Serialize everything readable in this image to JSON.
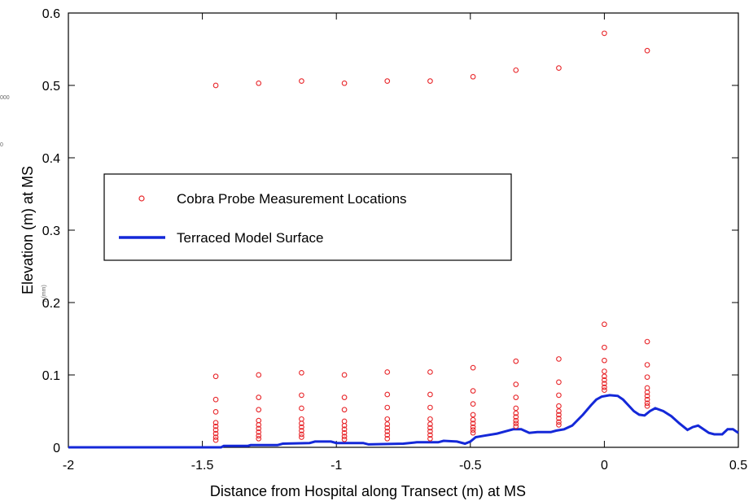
{
  "chart_data": {
    "type": "scatter",
    "xlabel": "Distance from Hospital along Transect (m) at MS",
    "ylabel": "Elevation (m) at MS",
    "xlim": [
      -2,
      0.5
    ],
    "ylim": [
      0,
      0.6
    ],
    "x_ticks": [
      -2,
      -1.5,
      -1,
      -0.5,
      0,
      0.5
    ],
    "x_tick_labels": [
      "-2",
      "-1.5",
      "-1",
      "-0.5",
      "0",
      "0.5"
    ],
    "y_ticks": [
      0,
      0.1,
      0.2,
      0.3,
      0.4,
      0.5,
      0.6
    ],
    "y_tick_labels": [
      "0",
      "0.1",
      "0.2",
      "0.3",
      "0.4",
      "0.5",
      "0.6"
    ],
    "legend": {
      "placement": "center-left",
      "entries": [
        {
          "label": "Cobra Probe Measurement Locations",
          "marker": "circle",
          "color": "#e8262a"
        },
        {
          "label": "Terraced Model Surface",
          "marker": "line",
          "color": "#1428d8"
        }
      ]
    },
    "series": [
      {
        "name": "Cobra Probe Measurement Locations",
        "kind": "scatter",
        "color": "#e8262a",
        "columns": [
          {
            "x": -1.45,
            "y": [
              0.098,
              0.066,
              0.049,
              0.034,
              0.029,
              0.024,
              0.019,
              0.014,
              0.01
            ]
          },
          {
            "x": -1.29,
            "y": [
              0.1,
              0.069,
              0.052,
              0.037,
              0.031,
              0.026,
              0.021,
              0.016,
              0.012
            ]
          },
          {
            "x": -1.13,
            "y": [
              0.103,
              0.072,
              0.054,
              0.039,
              0.033,
              0.028,
              0.023,
              0.018,
              0.014
            ]
          },
          {
            "x": -0.97,
            "y": [
              0.1,
              0.069,
              0.052,
              0.036,
              0.03,
              0.025,
              0.02,
              0.015,
              0.011
            ]
          },
          {
            "x": -0.81,
            "y": [
              0.104,
              0.073,
              0.055,
              0.039,
              0.032,
              0.027,
              0.022,
              0.017,
              0.012
            ]
          },
          {
            "x": -0.65,
            "y": [
              0.104,
              0.073,
              0.055,
              0.039,
              0.032,
              0.027,
              0.022,
              0.017,
              0.012
            ]
          },
          {
            "x": -0.49,
            "y": [
              0.11,
              0.078,
              0.06,
              0.045,
              0.038,
              0.033,
              0.028,
              0.024,
              0.02
            ]
          },
          {
            "x": -0.33,
            "y": [
              0.119,
              0.087,
              0.069,
              0.054,
              0.047,
              0.042,
              0.037,
              0.033,
              0.029
            ]
          },
          {
            "x": -0.17,
            "y": [
              0.122,
              0.09,
              0.072,
              0.057,
              0.05,
              0.045,
              0.04,
              0.035,
              0.031
            ]
          },
          {
            "x": 0.0,
            "y": [
              0.17,
              0.138,
              0.12,
              0.105,
              0.098,
              0.093,
              0.088,
              0.083,
              0.079
            ]
          },
          {
            "x": 0.16,
            "y": [
              0.146,
              0.114,
              0.097,
              0.082,
              0.076,
              0.071,
              0.066,
              0.061,
              0.057
            ]
          }
        ],
        "upper_points": [
          {
            "x": -1.45,
            "y": 0.5
          },
          {
            "x": -1.29,
            "y": 0.503
          },
          {
            "x": -1.13,
            "y": 0.506
          },
          {
            "x": -0.97,
            "y": 0.503
          },
          {
            "x": -0.81,
            "y": 0.506
          },
          {
            "x": -0.65,
            "y": 0.506
          },
          {
            "x": -0.49,
            "y": 0.512
          },
          {
            "x": -0.33,
            "y": 0.521
          },
          {
            "x": -0.17,
            "y": 0.524
          },
          {
            "x": 0.0,
            "y": 0.572
          },
          {
            "x": 0.16,
            "y": 0.548
          }
        ]
      },
      {
        "name": "Terraced Model Surface",
        "kind": "line",
        "color": "#1428d8",
        "points": [
          [
            -2.0,
            0.0
          ],
          [
            -1.43,
            0.0
          ],
          [
            -1.42,
            0.002
          ],
          [
            -1.33,
            0.002
          ],
          [
            -1.32,
            0.003
          ],
          [
            -1.22,
            0.003
          ],
          [
            -1.2,
            0.005
          ],
          [
            -1.1,
            0.006
          ],
          [
            -1.08,
            0.008
          ],
          [
            -1.02,
            0.008
          ],
          [
            -1.0,
            0.006
          ],
          [
            -0.9,
            0.006
          ],
          [
            -0.88,
            0.004
          ],
          [
            -0.75,
            0.005
          ],
          [
            -0.7,
            0.007
          ],
          [
            -0.62,
            0.007
          ],
          [
            -0.6,
            0.009
          ],
          [
            -0.55,
            0.008
          ],
          [
            -0.52,
            0.005
          ],
          [
            -0.5,
            0.008
          ],
          [
            -0.48,
            0.014
          ],
          [
            -0.45,
            0.016
          ],
          [
            -0.4,
            0.019
          ],
          [
            -0.37,
            0.022
          ],
          [
            -0.34,
            0.025
          ],
          [
            -0.31,
            0.025
          ],
          [
            -0.28,
            0.02
          ],
          [
            -0.25,
            0.021
          ],
          [
            -0.2,
            0.021
          ],
          [
            -0.18,
            0.023
          ],
          [
            -0.15,
            0.025
          ],
          [
            -0.12,
            0.03
          ],
          [
            -0.08,
            0.045
          ],
          [
            -0.05,
            0.058
          ],
          [
            -0.03,
            0.066
          ],
          [
            -0.01,
            0.07
          ],
          [
            0.02,
            0.072
          ],
          [
            0.05,
            0.071
          ],
          [
            0.07,
            0.066
          ],
          [
            0.09,
            0.058
          ],
          [
            0.11,
            0.05
          ],
          [
            0.13,
            0.045
          ],
          [
            0.15,
            0.044
          ],
          [
            0.17,
            0.05
          ],
          [
            0.19,
            0.054
          ],
          [
            0.22,
            0.05
          ],
          [
            0.25,
            0.043
          ],
          [
            0.28,
            0.033
          ],
          [
            0.31,
            0.024
          ],
          [
            0.33,
            0.028
          ],
          [
            0.35,
            0.03
          ],
          [
            0.37,
            0.025
          ],
          [
            0.39,
            0.02
          ],
          [
            0.41,
            0.018
          ],
          [
            0.44,
            0.018
          ],
          [
            0.46,
            0.025
          ],
          [
            0.48,
            0.025
          ],
          [
            0.5,
            0.02
          ]
        ]
      }
    ],
    "ghost_texts": [
      "y (mm)",
      "000",
      "0"
    ],
    "grid": false
  }
}
